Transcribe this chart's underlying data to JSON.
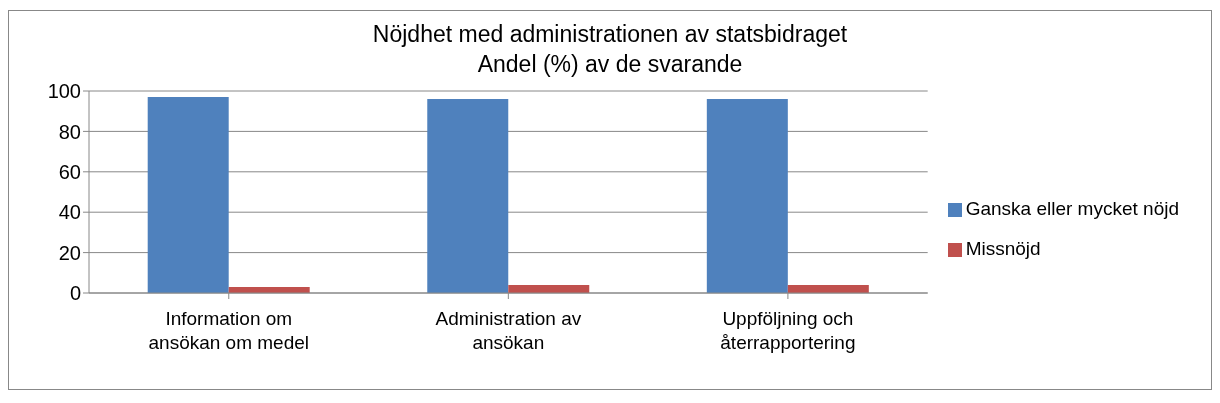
{
  "chart_data": {
    "type": "bar",
    "title": "Nöjdhet med administrationen av statsbidraget",
    "subtitle": "Andel (%) av de svarande",
    "categories": [
      "Information om ansökan om medel",
      "Administration av ansökan",
      "Uppföljning och återrapportering"
    ],
    "series": [
      {
        "name": "Ganska eller mycket nöjd",
        "color": "#4f81bd",
        "values": [
          97,
          96,
          96
        ]
      },
      {
        "name": "Missnöjd",
        "color": "#c0504d",
        "values": [
          3,
          4,
          4
        ]
      }
    ],
    "ylim": [
      0,
      100
    ],
    "yticks": [
      0,
      20,
      40,
      60,
      80,
      100
    ],
    "grid": "y",
    "legend": "right"
  }
}
